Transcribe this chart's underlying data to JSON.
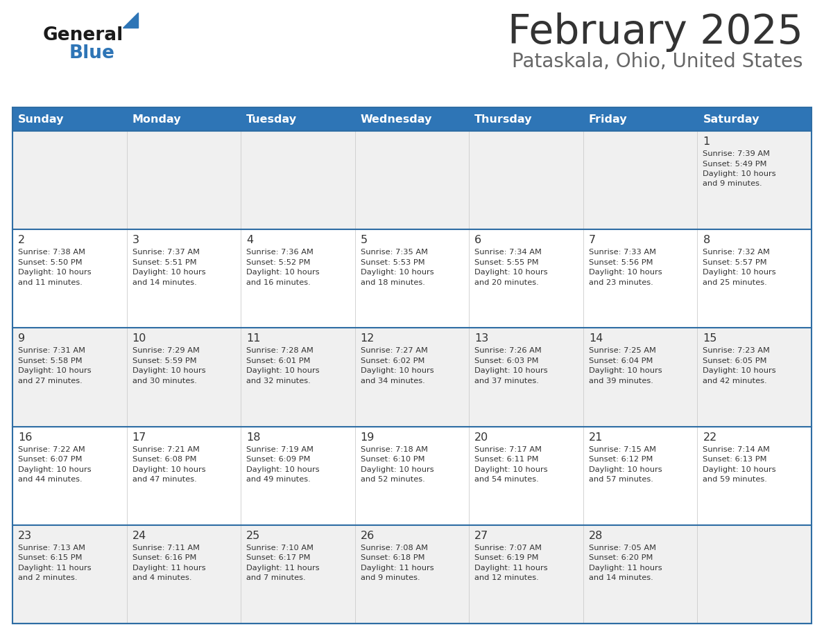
{
  "title": "February 2025",
  "subtitle": "Pataskala, Ohio, United States",
  "header_bg": "#2E75B6",
  "header_text": "#FFFFFF",
  "day_names": [
    "Sunday",
    "Monday",
    "Tuesday",
    "Wednesday",
    "Thursday",
    "Friday",
    "Saturday"
  ],
  "row_bg_even": "#F0F0F0",
  "row_bg_odd": "#FFFFFF",
  "cell_text": "#333333",
  "border_color": "#2E6DA4",
  "title_color": "#333333",
  "subtitle_color": "#666666",
  "logo_general_color": "#1a1a1a",
  "logo_blue_color": "#2E75B6",
  "logo_triangle_color": "#2E75B6",
  "days": [
    {
      "day": 1,
      "col": 6,
      "row": 0,
      "sunrise": "7:39 AM",
      "sunset": "5:49 PM",
      "daylight": "10 hours and 9 minutes"
    },
    {
      "day": 2,
      "col": 0,
      "row": 1,
      "sunrise": "7:38 AM",
      "sunset": "5:50 PM",
      "daylight": "10 hours and 11 minutes"
    },
    {
      "day": 3,
      "col": 1,
      "row": 1,
      "sunrise": "7:37 AM",
      "sunset": "5:51 PM",
      "daylight": "10 hours and 14 minutes"
    },
    {
      "day": 4,
      "col": 2,
      "row": 1,
      "sunrise": "7:36 AM",
      "sunset": "5:52 PM",
      "daylight": "10 hours and 16 minutes"
    },
    {
      "day": 5,
      "col": 3,
      "row": 1,
      "sunrise": "7:35 AM",
      "sunset": "5:53 PM",
      "daylight": "10 hours and 18 minutes"
    },
    {
      "day": 6,
      "col": 4,
      "row": 1,
      "sunrise": "7:34 AM",
      "sunset": "5:55 PM",
      "daylight": "10 hours and 20 minutes"
    },
    {
      "day": 7,
      "col": 5,
      "row": 1,
      "sunrise": "7:33 AM",
      "sunset": "5:56 PM",
      "daylight": "10 hours and 23 minutes"
    },
    {
      "day": 8,
      "col": 6,
      "row": 1,
      "sunrise": "7:32 AM",
      "sunset": "5:57 PM",
      "daylight": "10 hours and 25 minutes"
    },
    {
      "day": 9,
      "col": 0,
      "row": 2,
      "sunrise": "7:31 AM",
      "sunset": "5:58 PM",
      "daylight": "10 hours and 27 minutes"
    },
    {
      "day": 10,
      "col": 1,
      "row": 2,
      "sunrise": "7:29 AM",
      "sunset": "5:59 PM",
      "daylight": "10 hours and 30 minutes"
    },
    {
      "day": 11,
      "col": 2,
      "row": 2,
      "sunrise": "7:28 AM",
      "sunset": "6:01 PM",
      "daylight": "10 hours and 32 minutes"
    },
    {
      "day": 12,
      "col": 3,
      "row": 2,
      "sunrise": "7:27 AM",
      "sunset": "6:02 PM",
      "daylight": "10 hours and 34 minutes"
    },
    {
      "day": 13,
      "col": 4,
      "row": 2,
      "sunrise": "7:26 AM",
      "sunset": "6:03 PM",
      "daylight": "10 hours and 37 minutes"
    },
    {
      "day": 14,
      "col": 5,
      "row": 2,
      "sunrise": "7:25 AM",
      "sunset": "6:04 PM",
      "daylight": "10 hours and 39 minutes"
    },
    {
      "day": 15,
      "col": 6,
      "row": 2,
      "sunrise": "7:23 AM",
      "sunset": "6:05 PM",
      "daylight": "10 hours and 42 minutes"
    },
    {
      "day": 16,
      "col": 0,
      "row": 3,
      "sunrise": "7:22 AM",
      "sunset": "6:07 PM",
      "daylight": "10 hours and 44 minutes"
    },
    {
      "day": 17,
      "col": 1,
      "row": 3,
      "sunrise": "7:21 AM",
      "sunset": "6:08 PM",
      "daylight": "10 hours and 47 minutes"
    },
    {
      "day": 18,
      "col": 2,
      "row": 3,
      "sunrise": "7:19 AM",
      "sunset": "6:09 PM",
      "daylight": "10 hours and 49 minutes"
    },
    {
      "day": 19,
      "col": 3,
      "row": 3,
      "sunrise": "7:18 AM",
      "sunset": "6:10 PM",
      "daylight": "10 hours and 52 minutes"
    },
    {
      "day": 20,
      "col": 4,
      "row": 3,
      "sunrise": "7:17 AM",
      "sunset": "6:11 PM",
      "daylight": "10 hours and 54 minutes"
    },
    {
      "day": 21,
      "col": 5,
      "row": 3,
      "sunrise": "7:15 AM",
      "sunset": "6:12 PM",
      "daylight": "10 hours and 57 minutes"
    },
    {
      "day": 22,
      "col": 6,
      "row": 3,
      "sunrise": "7:14 AM",
      "sunset": "6:13 PM",
      "daylight": "10 hours and 59 minutes"
    },
    {
      "day": 23,
      "col": 0,
      "row": 4,
      "sunrise": "7:13 AM",
      "sunset": "6:15 PM",
      "daylight": "11 hours and 2 minutes"
    },
    {
      "day": 24,
      "col": 1,
      "row": 4,
      "sunrise": "7:11 AM",
      "sunset": "6:16 PM",
      "daylight": "11 hours and 4 minutes"
    },
    {
      "day": 25,
      "col": 2,
      "row": 4,
      "sunrise": "7:10 AM",
      "sunset": "6:17 PM",
      "daylight": "11 hours and 7 minutes"
    },
    {
      "day": 26,
      "col": 3,
      "row": 4,
      "sunrise": "7:08 AM",
      "sunset": "6:18 PM",
      "daylight": "11 hours and 9 minutes"
    },
    {
      "day": 27,
      "col": 4,
      "row": 4,
      "sunrise": "7:07 AM",
      "sunset": "6:19 PM",
      "daylight": "11 hours and 12 minutes"
    },
    {
      "day": 28,
      "col": 5,
      "row": 4,
      "sunrise": "7:05 AM",
      "sunset": "6:20 PM",
      "daylight": "11 hours and 14 minutes"
    }
  ],
  "fig_width": 11.88,
  "fig_height": 9.18,
  "dpi": 100
}
